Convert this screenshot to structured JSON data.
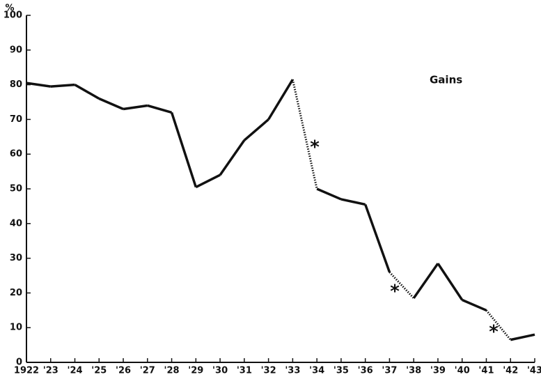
{
  "chart_data": {
    "type": "line",
    "y_label": "%",
    "categories": [
      "1922",
      "'23",
      "'24",
      "'25",
      "'26",
      "'27",
      "'28",
      "'29",
      "'30",
      "'31",
      "'32",
      "'33",
      "'34",
      "'35",
      "'36",
      "'37",
      "'38",
      "'39",
      "'40",
      "'41",
      "'42",
      "'43"
    ],
    "values": [
      80.5,
      79.5,
      80,
      76,
      73,
      74,
      72,
      50.5,
      54,
      64,
      70,
      81.5,
      50,
      47,
      45.5,
      26,
      18.5,
      28.5,
      18,
      15,
      6.5,
      8
    ],
    "color": "#111111",
    "segment_styles": [
      "solid",
      "solid",
      "solid",
      "solid",
      "solid",
      "solid",
      "solid",
      "solid",
      "solid",
      "solid",
      "solid",
      "dotted",
      "solid",
      "solid",
      "solid",
      "dotted",
      "solid",
      "solid",
      "solid",
      "dotted",
      "solid"
    ],
    "ylim": [
      0,
      100
    ],
    "yticks": [
      0,
      10,
      20,
      30,
      40,
      50,
      60,
      70,
      80,
      90,
      100
    ],
    "annotations": [
      "Gains",
      "*",
      "*",
      "*"
    ]
  }
}
